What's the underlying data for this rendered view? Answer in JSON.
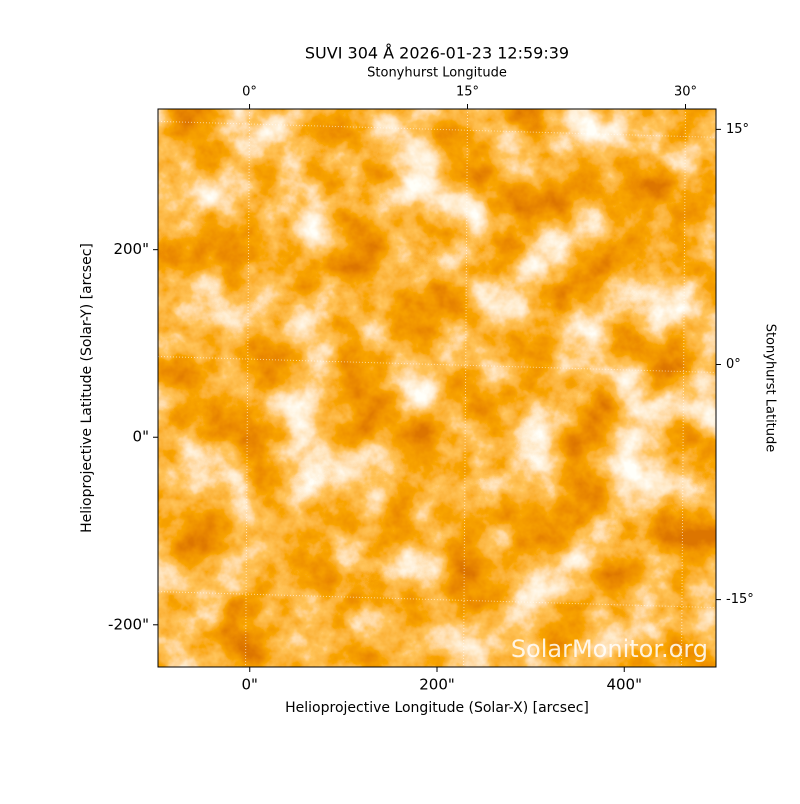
{
  "chart_data": {
    "type": "image",
    "title": "SUVI 304 Å 2026-01-23 12:59:39",
    "xlabel": "Helioprojective Longitude (Solar-X) [arcsec]",
    "ylabel": "Helioprojective Latitude (Solar-Y) [arcsec]",
    "x2label": "Stonyhurst Longitude",
    "y2label": "Stonyhurst Latitude",
    "annotation": "SolarMonitor.org",
    "xlim": [
      -98,
      498
    ],
    "ylim": [
      -245,
      350
    ],
    "xticks": [
      {
        "value": 0,
        "label": "0\""
      },
      {
        "value": 200,
        "label": "200\""
      },
      {
        "value": 400,
        "label": "400\""
      }
    ],
    "yticks": [
      {
        "value": -200,
        "label": "-200\""
      },
      {
        "value": 0,
        "label": "0\""
      },
      {
        "value": 200,
        "label": "200\""
      }
    ],
    "x2lim": [
      -6.3,
      32.1
    ],
    "x2ticks": [
      {
        "value": 0,
        "label": "0°"
      },
      {
        "value": 15,
        "label": "15°"
      },
      {
        "value": 30,
        "label": "30°"
      }
    ],
    "y2lim": [
      -19.3,
      16.3
    ],
    "y2ticks": [
      {
        "value": -15,
        "label": "-15°"
      },
      {
        "value": 0,
        "label": "0°"
      },
      {
        "value": 15,
        "label": "15°"
      }
    ],
    "grid": true
  }
}
